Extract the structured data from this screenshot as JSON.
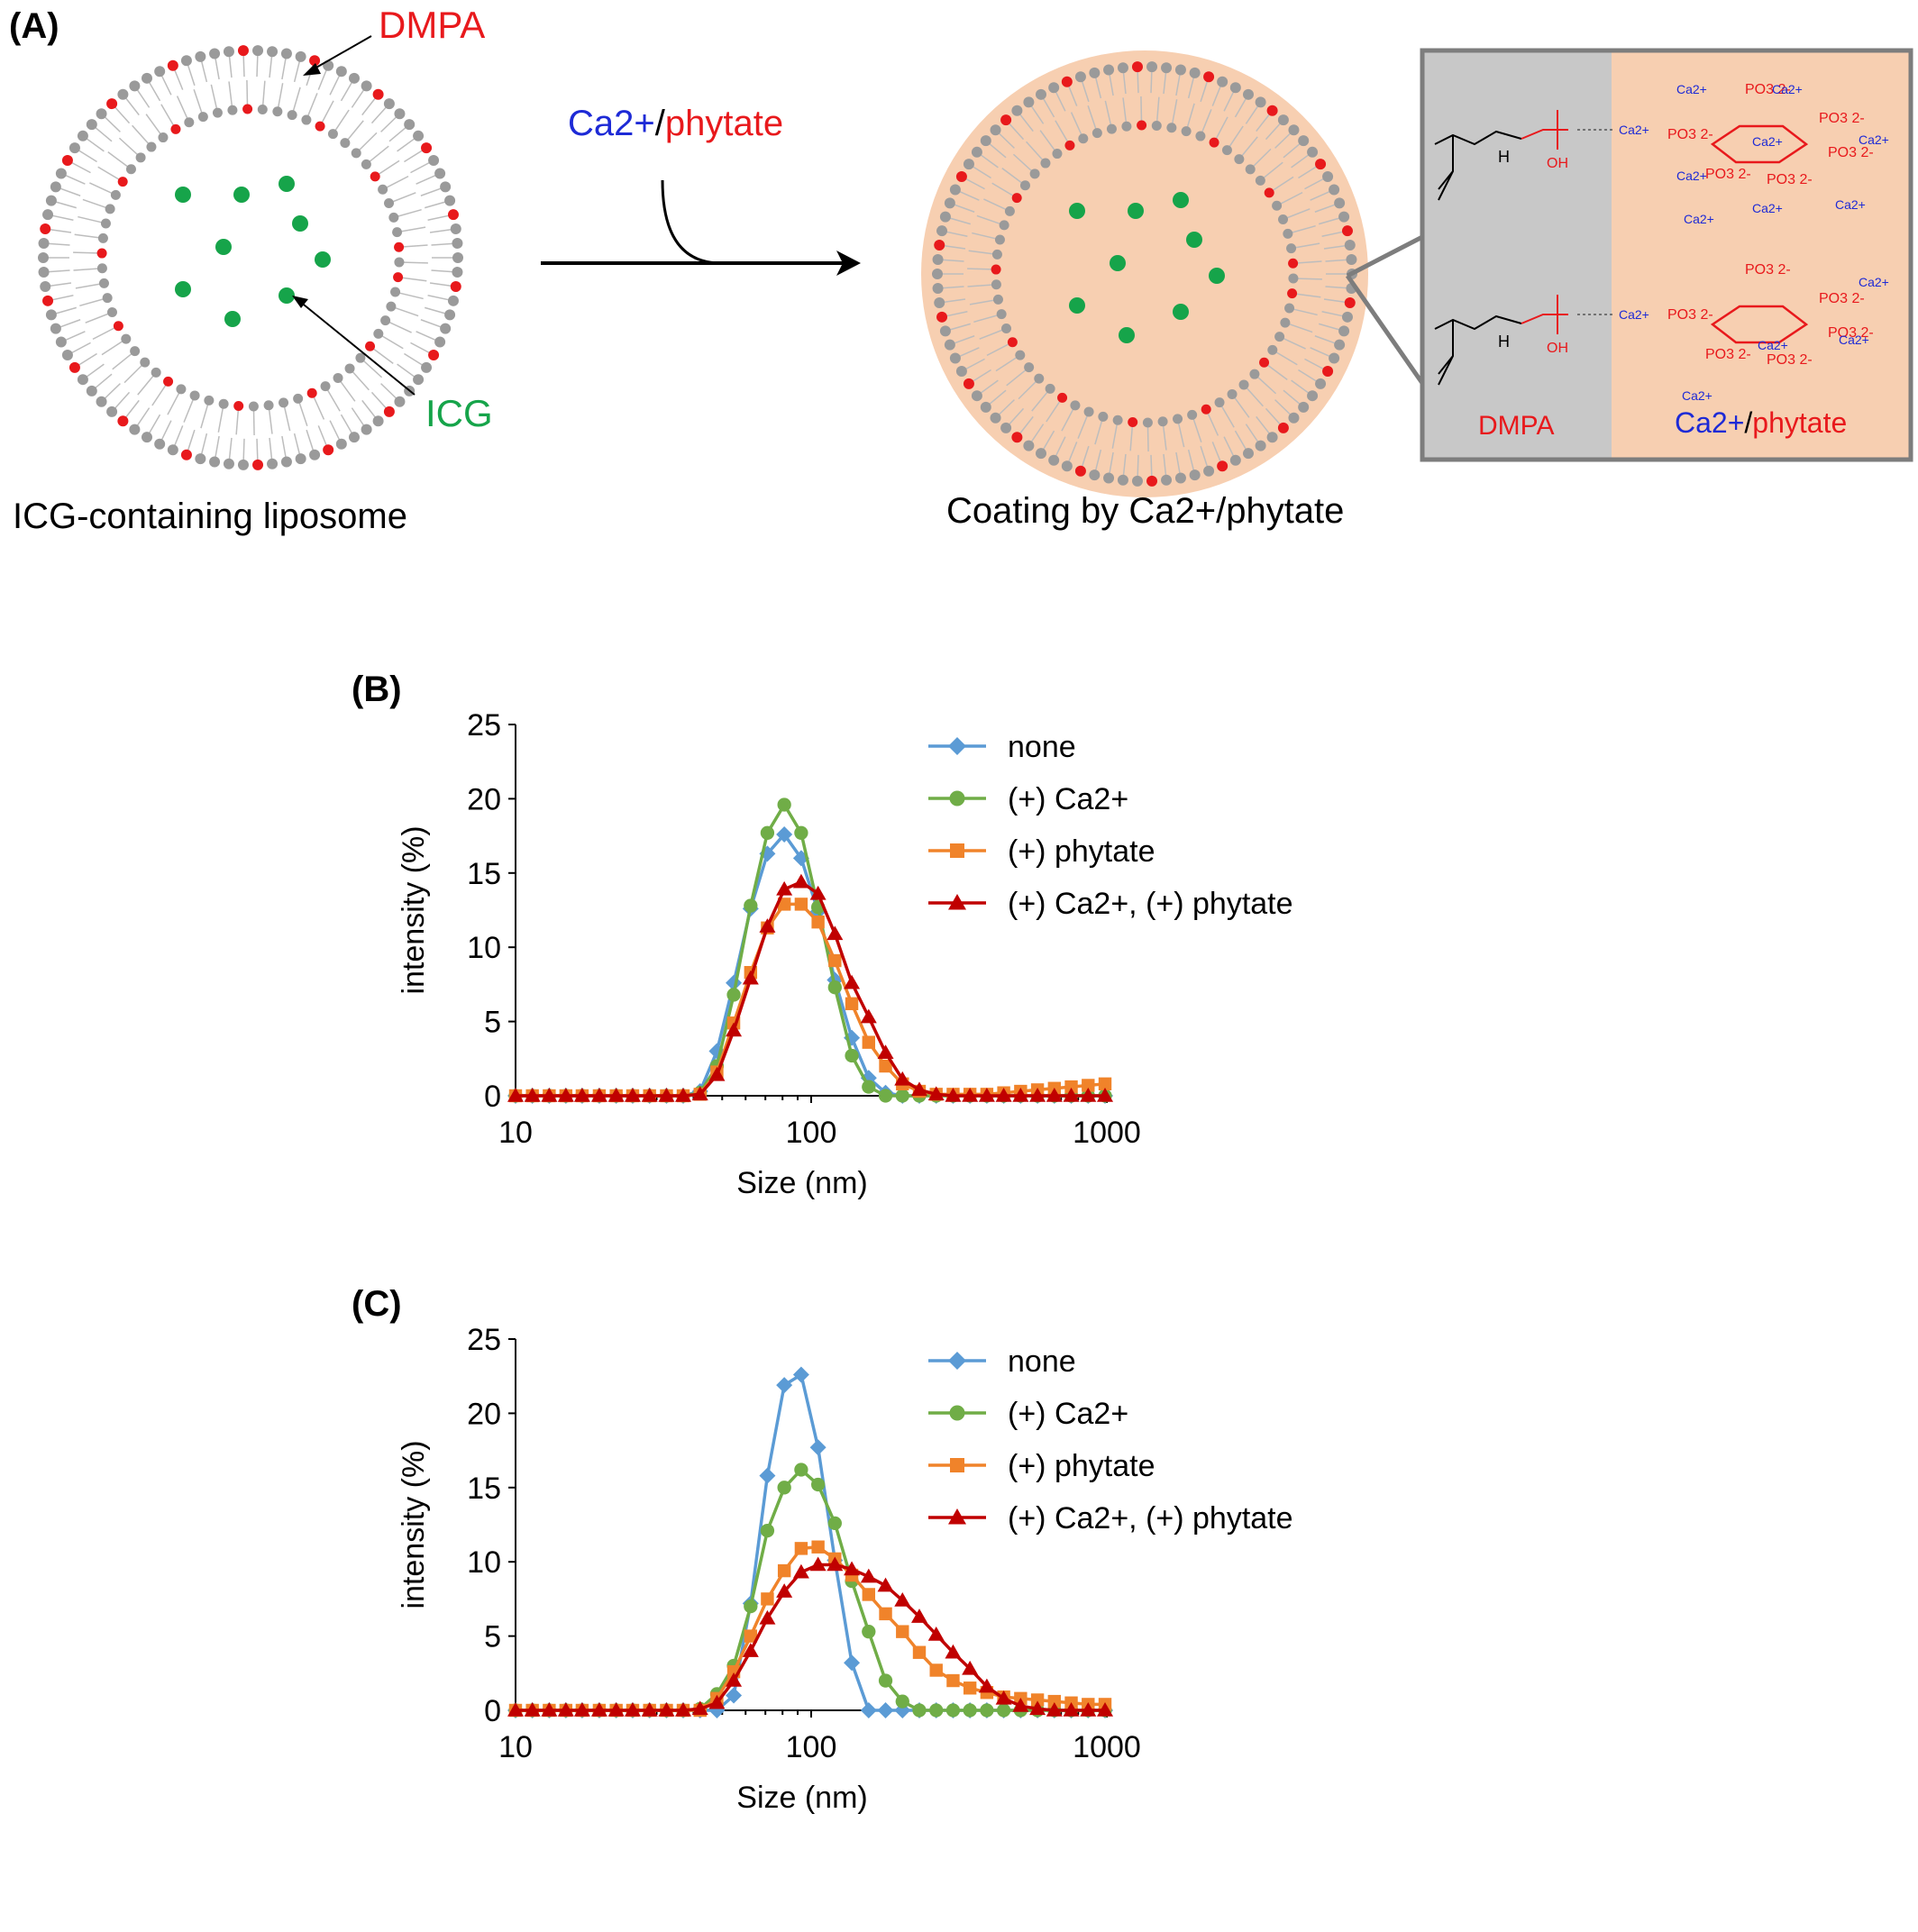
{
  "scheme": {
    "panel_label": "(A)",
    "dmpa_label": "DMPA",
    "icg_label": "ICG",
    "left_caption": "ICG-containing liposome",
    "reagent_ca": "Ca2+",
    "reagent_sep": "/",
    "reagent_phytate": "phytate",
    "right_caption": "Coating by Ca2+/phytate",
    "inset_dmpa": "DMPA",
    "inset_ca": "Ca2+",
    "inset_sep": "/",
    "inset_phytate": "phytate",
    "inset_ca_ion": "Ca2+",
    "inset_po3": "PO3 2-",
    "inset_oh": "OH",
    "inset_h": "H",
    "colors": {
      "dmpa_red": "#e8191c",
      "icg_green": "#16a44a",
      "ca_blue": "#1d2ad6",
      "coat_peach": "#f7cfb1",
      "gray_head": "#9a9a9a"
    }
  },
  "legend": {
    "none": "none",
    "ca": "(+) Ca2+",
    "phytate": "(+) phytate",
    "both": "(+) Ca2+, (+) phytate"
  },
  "chart_data": [
    {
      "type": "line",
      "panel_label": "(B)",
      "xlabel": "Size (nm)",
      "ylabel": "intensity (%)",
      "x_scale": "log",
      "xlim": [
        10,
        1000
      ],
      "ylim": [
        0,
        25
      ],
      "x_ticks": [
        "10",
        "100",
        "1000"
      ],
      "y_ticks": [
        "0",
        "5",
        "10",
        "15",
        "20",
        "25"
      ],
      "legend_position": "top-right",
      "x": [
        10.0,
        11.4,
        13.0,
        14.8,
        16.8,
        19.2,
        21.9,
        24.9,
        28.4,
        32.4,
        36.9,
        42.1,
        48.0,
        54.7,
        62.4,
        71.1,
        81.1,
        92.5,
        105.5,
        120.3,
        137.2,
        156.5,
        178.5,
        203.6,
        232.2,
        264.8,
        302.0,
        344.4,
        392.8,
        448.0,
        511.0,
        582.8,
        664.7,
        758.1,
        864.7,
        986.2
      ],
      "series": [
        {
          "name": "none",
          "color": "#5b9bd5",
          "marker": "diamond",
          "values": [
            0,
            0,
            0,
            0,
            0,
            0,
            0,
            0,
            0,
            0,
            0,
            0.3,
            3.0,
            7.6,
            12.6,
            16.3,
            17.6,
            16.0,
            12.4,
            7.8,
            3.9,
            1.2,
            0.2,
            0,
            0,
            0,
            0,
            0,
            0,
            0,
            0,
            0,
            0,
            0,
            0,
            0
          ]
        },
        {
          "name": "(+) Ca2+",
          "color": "#70ad47",
          "marker": "circle",
          "values": [
            0,
            0,
            0,
            0,
            0,
            0,
            0,
            0,
            0,
            0,
            0,
            0.2,
            2.0,
            6.8,
            12.8,
            17.7,
            19.6,
            17.7,
            12.7,
            7.3,
            2.7,
            0.6,
            0,
            0,
            0,
            0,
            0,
            0,
            0,
            0,
            0,
            0,
            0,
            0,
            0,
            0
          ]
        },
        {
          "name": "(+) phytate",
          "color": "#f0832a",
          "marker": "square",
          "values": [
            0,
            0,
            0,
            0,
            0,
            0,
            0,
            0,
            0,
            0,
            0,
            0.1,
            1.6,
            4.9,
            8.3,
            11.3,
            12.9,
            12.9,
            11.7,
            9.1,
            6.2,
            3.6,
            2.0,
            0.8,
            0.3,
            0.1,
            0.1,
            0.1,
            0.1,
            0.2,
            0.3,
            0.4,
            0.5,
            0.6,
            0.7,
            0.8
          ]
        },
        {
          "name": "(+) Ca2+, (+) phytate",
          "color": "#c00000",
          "marker": "triangle",
          "values": [
            0,
            0,
            0,
            0,
            0,
            0,
            0,
            0,
            0,
            0,
            0,
            0.1,
            1.4,
            4.4,
            7.9,
            11.4,
            13.9,
            14.4,
            13.6,
            10.9,
            7.6,
            5.3,
            2.9,
            1.1,
            0.4,
            0.1,
            0,
            0,
            0,
            0,
            0,
            0,
            0,
            0,
            0,
            0
          ]
        }
      ]
    },
    {
      "type": "line",
      "panel_label": "(C)",
      "xlabel": "Size (nm)",
      "ylabel": "intensity (%)",
      "x_scale": "log",
      "xlim": [
        10,
        1000
      ],
      "ylim": [
        0,
        25
      ],
      "x_ticks": [
        "10",
        "100",
        "1000"
      ],
      "y_ticks": [
        "0",
        "5",
        "10",
        "15",
        "20",
        "25"
      ],
      "legend_position": "top-right",
      "x": [
        10.0,
        11.4,
        13.0,
        14.8,
        16.8,
        19.2,
        21.9,
        24.9,
        28.4,
        32.4,
        36.9,
        42.1,
        48.0,
        54.7,
        62.4,
        71.1,
        81.1,
        92.5,
        105.5,
        120.3,
        137.2,
        156.5,
        178.5,
        203.6,
        232.2,
        264.8,
        302.0,
        344.4,
        392.8,
        448.0,
        511.0,
        582.8,
        664.7,
        758.1,
        864.7,
        986.2
      ],
      "series": [
        {
          "name": "none",
          "color": "#5b9bd5",
          "marker": "diamond",
          "values": [
            0,
            0,
            0,
            0,
            0,
            0,
            0,
            0,
            0,
            0,
            0,
            0,
            0,
            1.0,
            7.2,
            15.8,
            21.9,
            22.6,
            17.7,
            10.1,
            3.2,
            0,
            0,
            0,
            0,
            0,
            0,
            0,
            0,
            0,
            0,
            0,
            0,
            0,
            0,
            0
          ]
        },
        {
          "name": "(+) Ca2+",
          "color": "#70ad47",
          "marker": "circle",
          "values": [
            0,
            0,
            0,
            0,
            0,
            0,
            0,
            0,
            0,
            0,
            0,
            0.1,
            1.1,
            3.0,
            7.0,
            12.1,
            15.0,
            16.2,
            15.2,
            12.6,
            8.7,
            5.3,
            2.0,
            0.6,
            0,
            0,
            0,
            0,
            0,
            0,
            0,
            0,
            0,
            0,
            0,
            0
          ]
        },
        {
          "name": "(+) phytate",
          "color": "#f0832a",
          "marker": "square",
          "values": [
            0,
            0,
            0,
            0,
            0,
            0,
            0,
            0,
            0,
            0,
            0,
            0,
            0.8,
            2.6,
            5.0,
            7.5,
            9.4,
            10.9,
            11.0,
            10.2,
            9.1,
            7.8,
            6.5,
            5.3,
            3.9,
            2.7,
            2.0,
            1.5,
            1.2,
            0.9,
            0.8,
            0.7,
            0.6,
            0.5,
            0.4,
            0.4
          ]
        },
        {
          "name": "(+) Ca2+, (+) phytate",
          "color": "#c00000",
          "marker": "triangle",
          "values": [
            0,
            0,
            0,
            0,
            0,
            0,
            0,
            0,
            0,
            0,
            0,
            0.1,
            0.5,
            2.0,
            4.0,
            6.2,
            8.0,
            9.3,
            9.8,
            9.8,
            9.5,
            9.0,
            8.4,
            7.4,
            6.3,
            5.1,
            3.9,
            2.8,
            1.6,
            0.8,
            0.3,
            0.1,
            0,
            0,
            0,
            0
          ]
        }
      ]
    }
  ]
}
